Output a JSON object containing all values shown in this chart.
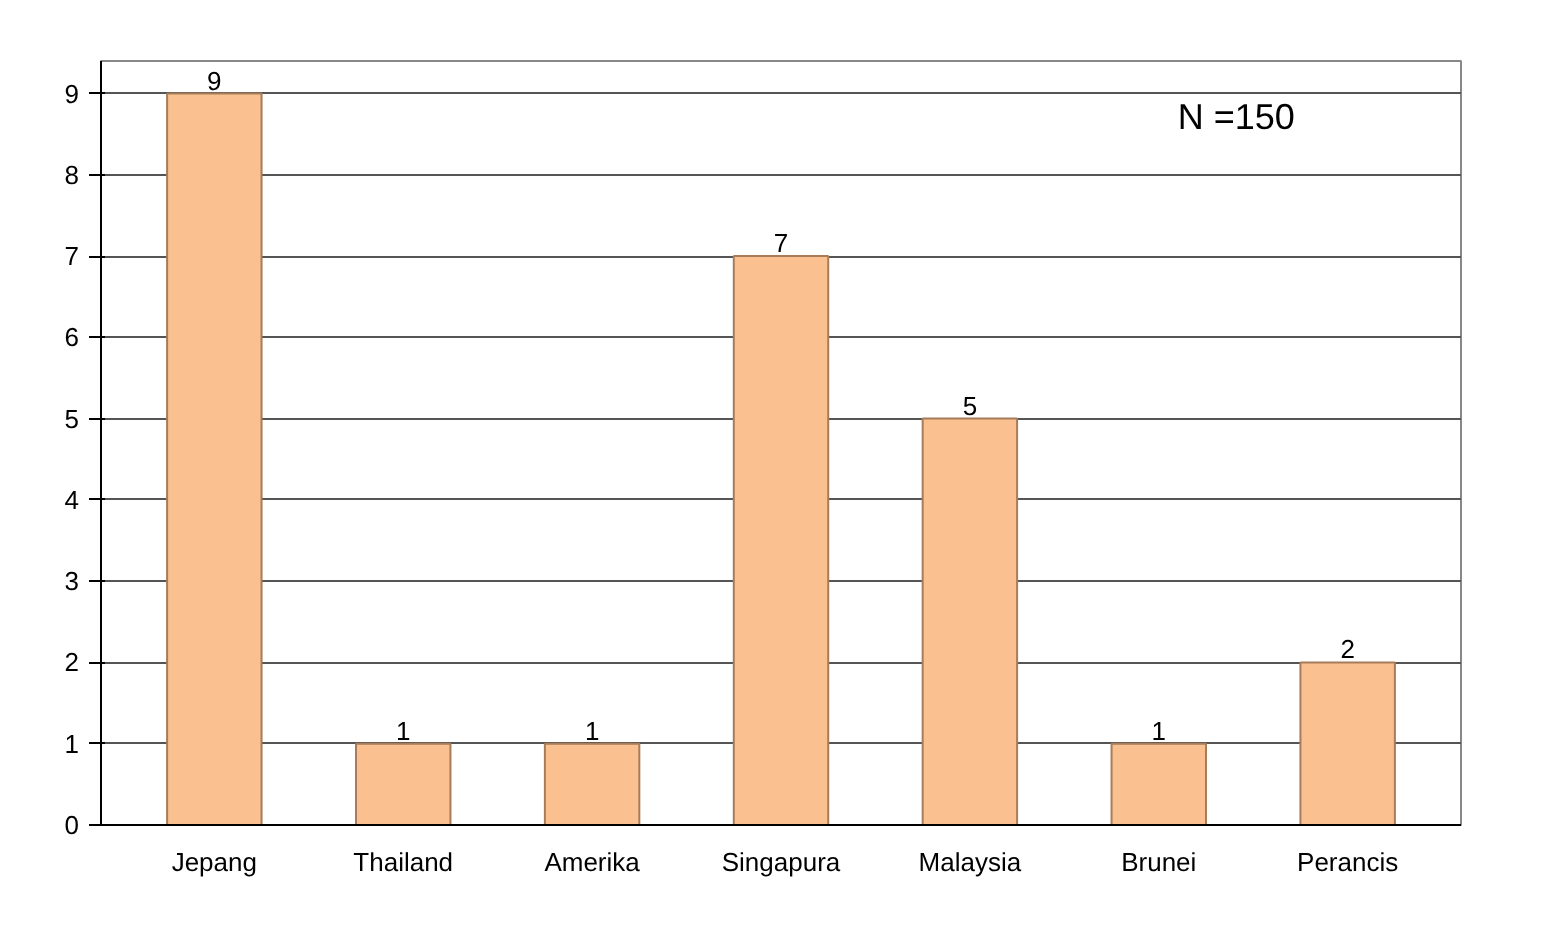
{
  "chart_data": {
    "type": "bar",
    "categories": [
      "Jepang",
      "Thailand",
      "Amerika",
      "Singapura",
      "Malaysia",
      "Brunei",
      "Perancis"
    ],
    "values": [
      9,
      1,
      1,
      7,
      5,
      1,
      2
    ],
    "color": "#fac090",
    "ylim": [
      0,
      9.4
    ],
    "yticks": [
      0,
      1,
      2,
      3,
      4,
      5,
      6,
      7,
      8,
      9
    ],
    "grid": "y",
    "data_labels": true,
    "annotations": [
      "N =150"
    ]
  }
}
